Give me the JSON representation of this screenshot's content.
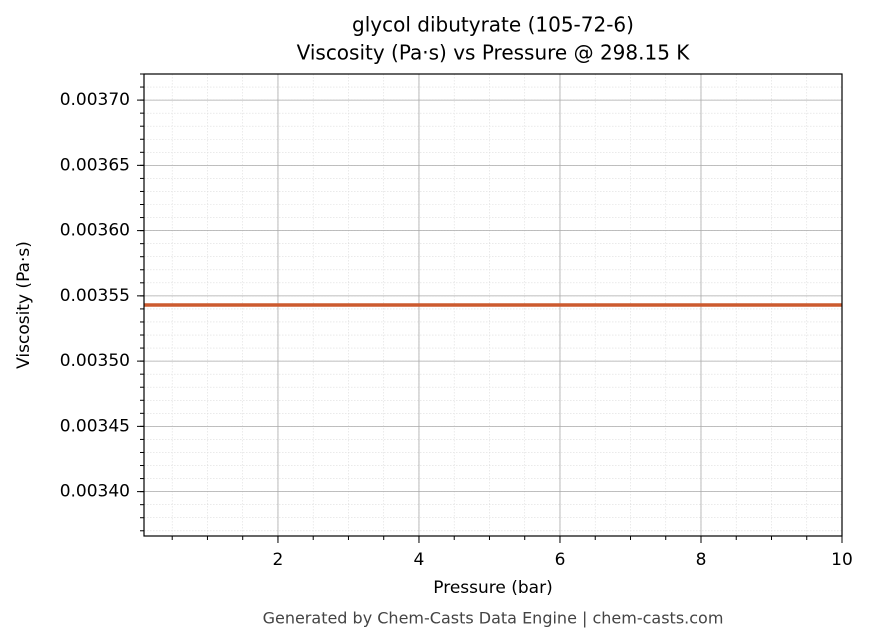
{
  "chart_data": {
    "type": "line",
    "title": "glycol dibutyrate (105-72-6)",
    "subtitle": "Viscosity (Pa·s) vs Pressure @ 298.15 K",
    "x_label": "Pressure (bar)",
    "y_label": "Viscosity (Pa·s)",
    "footer": "Generated by Chem-Casts Data Engine | chem-casts.com",
    "x": [
      0.1,
      10
    ],
    "series": [
      {
        "name": "Viscosity",
        "color": "#cc5a2e",
        "values": [
          0.003543,
          0.003543
        ]
      }
    ],
    "xlim": [
      0.1,
      10
    ],
    "ylim": [
      0.003366,
      0.00372
    ],
    "xticks": [
      2,
      4,
      6,
      8,
      10
    ],
    "yticks": [
      {
        "value": 0.0034,
        "label": "0.00340"
      },
      {
        "value": 0.00345,
        "label": "0.00345"
      },
      {
        "value": 0.0035,
        "label": "0.00350"
      },
      {
        "value": 0.00355,
        "label": "0.00355"
      },
      {
        "value": 0.0036,
        "label": "0.00360"
      },
      {
        "value": 0.00365,
        "label": "0.00365"
      },
      {
        "value": 0.0037,
        "label": "0.00370"
      }
    ],
    "grid": true,
    "minor_divisions": {
      "x": 4,
      "y": 5
    }
  }
}
